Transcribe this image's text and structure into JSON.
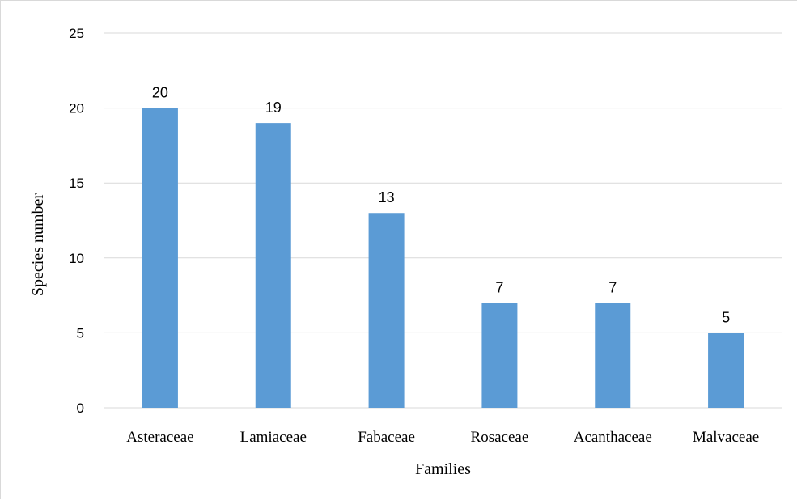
{
  "chart_data": {
    "type": "bar",
    "title": "",
    "categories": [
      "Asteraceae",
      "Lamiaceae",
      "Fabaceae",
      "Rosaceae",
      "Acanthaceae",
      "Malvaceae"
    ],
    "values": [
      20,
      19,
      13,
      7,
      7,
      5
    ],
    "xlabel": "Families",
    "ylabel": "Species number",
    "ylim": [
      0,
      25
    ],
    "yticks": [
      0,
      5,
      10,
      15,
      20,
      25
    ],
    "grid": true,
    "legend": "none",
    "data_labels": true,
    "bar_color": "#5b9bd5",
    "grid_color": "#d9d9d9"
  }
}
